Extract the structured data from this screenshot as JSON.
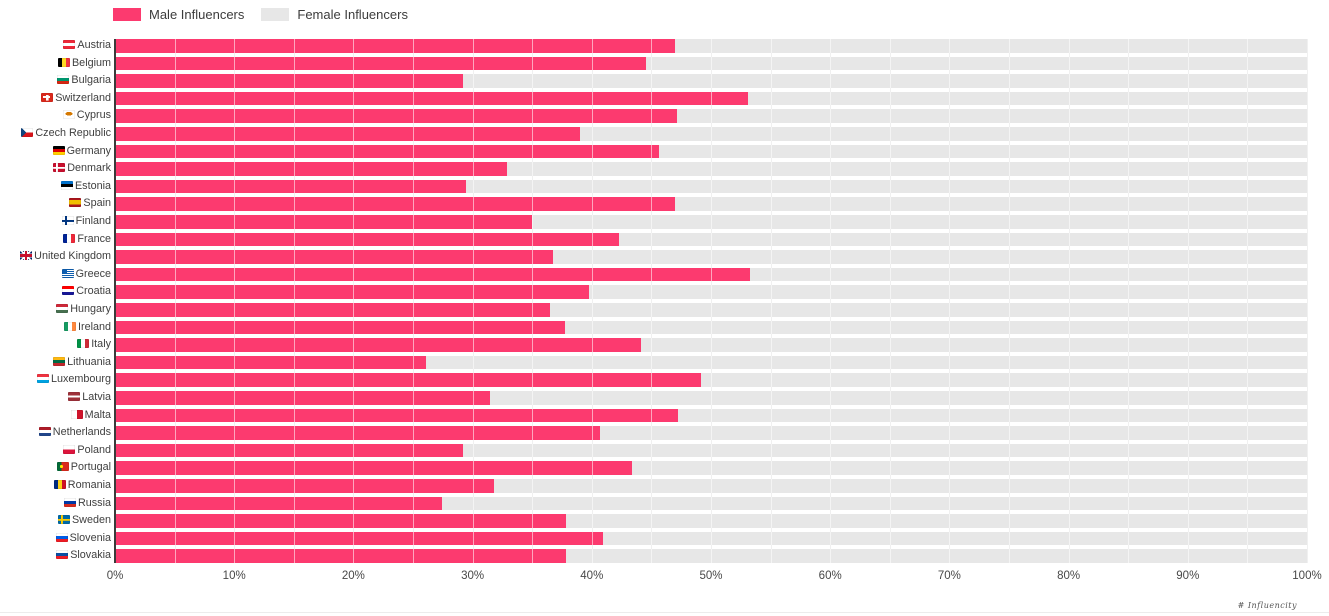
{
  "legend": {
    "male_label": "Male Influencers",
    "female_label": "Female Influencers"
  },
  "colors": {
    "male": "#FC3A6F",
    "female": "#E7E7E7"
  },
  "axis": {
    "ticks": [
      "0%",
      "10%",
      "20%",
      "30%",
      "40%",
      "50%",
      "60%",
      "70%",
      "80%",
      "90%",
      "100%"
    ],
    "min": 0,
    "max": 100,
    "unit": "%"
  },
  "watermark": "# Influencity",
  "chart_data": {
    "type": "bar",
    "orientation": "horizontal",
    "stacked": true,
    "total": 100,
    "title": "",
    "xlabel": "",
    "ylabel": "",
    "xlim": [
      0,
      100
    ],
    "grid": "vertical, every 5%",
    "legend_position": "top-left",
    "categories": [
      "Austria",
      "Belgium",
      "Bulgaria",
      "Switzerland",
      "Cyprus",
      "Czech Republic",
      "Germany",
      "Denmark",
      "Estonia",
      "Spain",
      "Finland",
      "France",
      "United Kingdom",
      "Greece",
      "Croatia",
      "Hungary",
      "Ireland",
      "Italy",
      "Lithuania",
      "Luxembourg",
      "Latvia",
      "Malta",
      "Netherlands",
      "Poland",
      "Portugal",
      "Romania",
      "Russia",
      "Sweden",
      "Slovenia",
      "Slovakia"
    ],
    "series": [
      {
        "name": "Male Influencers",
        "values": [
          46.9,
          44.5,
          29.1,
          53.1,
          47.1,
          39.0,
          45.6,
          32.8,
          29.4,
          46.9,
          34.9,
          42.2,
          36.7,
          53.2,
          39.7,
          36.4,
          37.7,
          44.1,
          26.0,
          49.1,
          31.4,
          47.2,
          40.6,
          29.1,
          43.3,
          31.7,
          27.4,
          37.8,
          40.9,
          37.8
        ]
      },
      {
        "name": "Female Influencers",
        "values": [
          53.1,
          55.5,
          70.9,
          46.9,
          52.9,
          61.0,
          54.4,
          67.2,
          70.6,
          53.1,
          65.1,
          57.8,
          63.3,
          46.8,
          60.3,
          63.6,
          62.3,
          55.9,
          74.0,
          50.9,
          68.6,
          52.8,
          59.4,
          70.9,
          56.7,
          68.3,
          72.6,
          62.2,
          59.1,
          62.2
        ]
      }
    ]
  },
  "flags": {
    "Austria": "linear-gradient(to bottom,#ED2939 0 33%,#fff 33% 66%,#ED2939 66%)",
    "Belgium": "linear-gradient(to right,#000 0 33%,#FDDA24 33% 66%,#EF3340 66%)",
    "Bulgaria": "linear-gradient(to bottom,#fff 0 33%,#00966E 33% 66%,#D62612 66%)",
    "Switzerland": "linear-gradient(#fff,#fff) 50% 50%/22% 62% no-repeat, linear-gradient(#fff,#fff) 50% 50%/62% 22% no-repeat #DA291C",
    "Cyprus": "radial-gradient(ellipse 30% 20% at 50% 42%, #D57800 98%, transparent 100%) #fff",
    "Czech Republic": "conic-gradient(from 225deg at 45% 50%, #11457E 0deg 90deg, transparent 90deg), linear-gradient(to bottom,#fff 0 50%,#D7141A 50%)",
    "Germany": "linear-gradient(to bottom,#000 0 33%,#DD0000 33% 66%,#FFCE00 66%)",
    "Denmark": "linear-gradient(#fff,#fff) 30% 0/16% 100% no-repeat, linear-gradient(#fff,#fff) 0 50%/100% 20% no-repeat #C8102E",
    "Estonia": "linear-gradient(to bottom,#0072CE 0 33%,#000 33% 66%,#fff 66%)",
    "Spain": "linear-gradient(to bottom,#AA151B 0 25%,#F1BF00 25% 75%,#AA151B 75%)",
    "Finland": "linear-gradient(#003580,#003580) 30% 0/18% 100% no-repeat, linear-gradient(#003580,#003580) 0 50%/100% 22% no-repeat #fff",
    "France": "linear-gradient(to right,#002395 0 33%,#fff 33% 66%,#ED2939 66%)",
    "United Kingdom": "linear-gradient(to right, transparent 42%, #C8102E 42% 58%, transparent 58%), linear-gradient(to bottom, transparent 36%, #C8102E 36% 64%, transparent 64%), linear-gradient(to right, transparent 34%, #fff 34% 66%, transparent 66%), linear-gradient(to bottom, transparent 26%, #fff 26% 74%, transparent 74%), linear-gradient(45deg, transparent 44%, #fff 44% 56%, transparent 56%), linear-gradient(135deg, transparent 44%, #fff 44% 56%, transparent 56%) #012169",
    "Greece": "linear-gradient(#0D5EAF,#0D5EAF) 0 0/42% 50% no-repeat, repeating-linear-gradient(to bottom, #0D5EAF 0 11.1%, #fff 11.1% 22.2%)",
    "Croatia": "linear-gradient(to bottom,#FF0000 0 33%,#fff 33% 66%,#171796 66%)",
    "Hungary": "linear-gradient(to bottom,#CE2939 0 33%,#fff 33% 66%,#477050 66%)",
    "Ireland": "linear-gradient(to right,#169B62 0 33%,#fff 33% 66%,#FF883E 66%)",
    "Italy": "linear-gradient(to right,#009246 0 33%,#fff 33% 66%,#CE2B37 66%)",
    "Lithuania": "linear-gradient(to bottom,#FDB913 0 33%,#006A44 33% 66%,#C1272D 66%)",
    "Luxembourg": "linear-gradient(to bottom,#EF3340 0 33%,#fff 33% 66%,#00A2E1 66%)",
    "Latvia": "linear-gradient(to bottom,#9E3039 0 40%,#fff 40% 60%,#9E3039 60%)",
    "Malta": "linear-gradient(to right,#fff 0 50%,#CF142B 50%)",
    "Netherlands": "linear-gradient(to bottom,#AE1C28 0 33%,#fff 33% 66%,#21468B 66%)",
    "Poland": "linear-gradient(to bottom,#fff 0 50%,#DC143C 50%)",
    "Portugal": "radial-gradient(circle at 37% 50%, #FFE900 0 17%, transparent 18%), linear-gradient(to right, #046A38 0 37%, #DA291C 37%)",
    "Romania": "linear-gradient(to right,#002B7F 0 33%,#FCD116 33% 66%,#CE1126 66%)",
    "Russia": "linear-gradient(to bottom,#fff 0 33%,#0039A6 33% 66%,#D52B1E 66%)",
    "Sweden": "linear-gradient(#FECC02,#FECC02) 30% 0/16% 100% no-repeat, linear-gradient(#FECC02,#FECC02) 0 50%/100% 20% no-repeat #006AA7",
    "Slovenia": "linear-gradient(to bottom,#fff 0 33%,#005CE5 33% 66%,#ED1C24 66%)",
    "Slovakia": "linear-gradient(to bottom,#fff 0 33%,#0B4EA2 33% 66%,#EE1C25 66%)"
  }
}
